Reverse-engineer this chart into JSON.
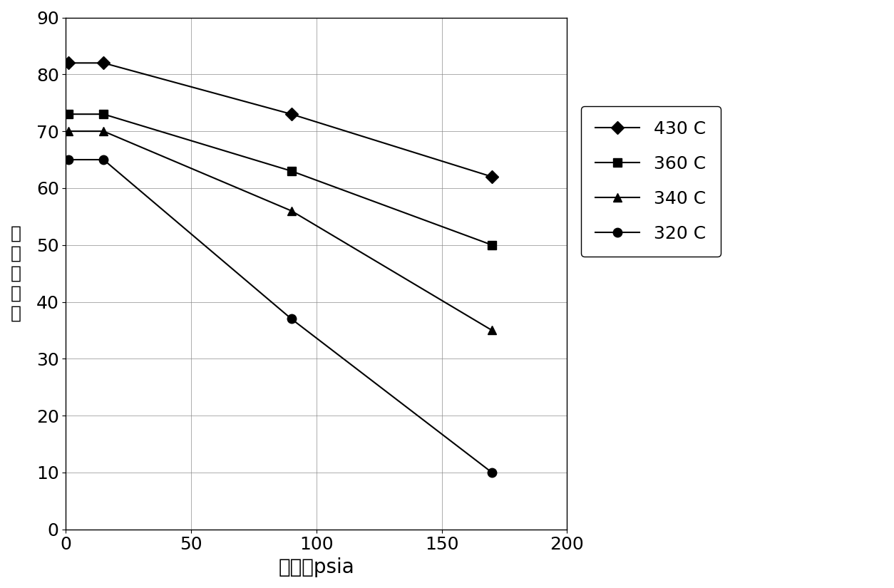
{
  "series": [
    {
      "label": "430 C",
      "x": [
        1,
        15,
        90,
        170
      ],
      "y": [
        82,
        82,
        73,
        62
      ],
      "marker": "D",
      "color": "black",
      "markersize": 9
    },
    {
      "label": "360 C",
      "x": [
        1,
        15,
        90,
        170
      ],
      "y": [
        73,
        73,
        63,
        50
      ],
      "marker": "s",
      "color": "black",
      "markersize": 9
    },
    {
      "label": "340 C",
      "x": [
        1,
        15,
        90,
        170
      ],
      "y": [
        70,
        70,
        56,
        35
      ],
      "marker": "^",
      "color": "black",
      "markersize": 9
    },
    {
      "label": "320 C",
      "x": [
        1,
        15,
        90,
        170
      ],
      "y": [
        65,
        65,
        37,
        10
      ],
      "marker": "o",
      "color": "black",
      "markersize": 9
    }
  ],
  "xlabel": "压力，psia",
  "ylabel": "烯烃选择性",
  "xlim": [
    0,
    200
  ],
  "ylim": [
    0,
    90
  ],
  "xticks": [
    0,
    50,
    100,
    150,
    200
  ],
  "yticks": [
    0,
    10,
    20,
    30,
    40,
    50,
    60,
    70,
    80,
    90
  ],
  "grid": true,
  "background_color": "#ffffff",
  "linewidth": 1.5,
  "xlabel_fontsize": 20,
  "ylabel_fontsize": 18,
  "tick_fontsize": 18,
  "legend_fontsize": 18
}
